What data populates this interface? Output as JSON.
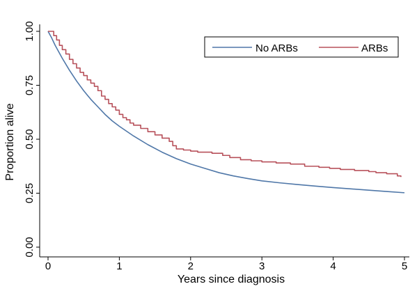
{
  "chart_data": {
    "type": "line",
    "title": "",
    "xlabel": "Years since diagnosis",
    "ylabel": "Proportion alive",
    "xlim": [
      0,
      5
    ],
    "ylim": [
      0,
      1
    ],
    "x_ticks": [
      0,
      1,
      2,
      3,
      4,
      5
    ],
    "y_ticks": [
      0.0,
      0.25,
      0.5,
      0.75,
      1.0
    ],
    "x_tick_labels": [
      "0",
      "1",
      "2",
      "3",
      "4",
      "5"
    ],
    "y_tick_labels": [
      "0.00",
      "0.25",
      "0.50",
      "0.75",
      "1.00"
    ],
    "grid": false,
    "legend_position": "top-right",
    "series": [
      {
        "name": "No ARBs",
        "color": "#4f77a8",
        "step": false,
        "points": [
          [
            0,
            1.0
          ],
          [
            0.05,
            0.97
          ],
          [
            0.1,
            0.935
          ],
          [
            0.2,
            0.875
          ],
          [
            0.3,
            0.82
          ],
          [
            0.4,
            0.77
          ],
          [
            0.5,
            0.725
          ],
          [
            0.6,
            0.685
          ],
          [
            0.7,
            0.65
          ],
          [
            0.8,
            0.615
          ],
          [
            0.9,
            0.585
          ],
          [
            1.0,
            0.56
          ],
          [
            1.2,
            0.515
          ],
          [
            1.4,
            0.475
          ],
          [
            1.6,
            0.44
          ],
          [
            1.8,
            0.41
          ],
          [
            2.0,
            0.385
          ],
          [
            2.2,
            0.365
          ],
          [
            2.4,
            0.345
          ],
          [
            2.6,
            0.33
          ],
          [
            2.8,
            0.318
          ],
          [
            3.0,
            0.307
          ],
          [
            3.25,
            0.298
          ],
          [
            3.5,
            0.29
          ],
          [
            3.75,
            0.283
          ],
          [
            4.0,
            0.276
          ],
          [
            4.25,
            0.27
          ],
          [
            4.5,
            0.264
          ],
          [
            4.75,
            0.258
          ],
          [
            5.0,
            0.252
          ]
        ]
      },
      {
        "name": "ARBs",
        "color": "#b7505a",
        "step": true,
        "points": [
          [
            0,
            1.0
          ],
          [
            0.08,
            0.98
          ],
          [
            0.12,
            0.96
          ],
          [
            0.16,
            0.935
          ],
          [
            0.2,
            0.915
          ],
          [
            0.25,
            0.895
          ],
          [
            0.3,
            0.87
          ],
          [
            0.35,
            0.85
          ],
          [
            0.4,
            0.83
          ],
          [
            0.45,
            0.81
          ],
          [
            0.5,
            0.795
          ],
          [
            0.55,
            0.775
          ],
          [
            0.6,
            0.76
          ],
          [
            0.65,
            0.745
          ],
          [
            0.7,
            0.725
          ],
          [
            0.75,
            0.7
          ],
          [
            0.8,
            0.685
          ],
          [
            0.85,
            0.665
          ],
          [
            0.9,
            0.65
          ],
          [
            0.95,
            0.635
          ],
          [
            1.0,
            0.615
          ],
          [
            1.05,
            0.6
          ],
          [
            1.1,
            0.59
          ],
          [
            1.15,
            0.575
          ],
          [
            1.2,
            0.565
          ],
          [
            1.3,
            0.55
          ],
          [
            1.4,
            0.535
          ],
          [
            1.5,
            0.52
          ],
          [
            1.6,
            0.505
          ],
          [
            1.7,
            0.49
          ],
          [
            1.75,
            0.47
          ],
          [
            1.8,
            0.455
          ],
          [
            1.9,
            0.45
          ],
          [
            2.0,
            0.445
          ],
          [
            2.1,
            0.44
          ],
          [
            2.3,
            0.435
          ],
          [
            2.45,
            0.425
          ],
          [
            2.55,
            0.415
          ],
          [
            2.7,
            0.405
          ],
          [
            2.85,
            0.4
          ],
          [
            3.0,
            0.395
          ],
          [
            3.2,
            0.39
          ],
          [
            3.4,
            0.385
          ],
          [
            3.6,
            0.375
          ],
          [
            3.8,
            0.37
          ],
          [
            3.95,
            0.365
          ],
          [
            4.1,
            0.36
          ],
          [
            4.3,
            0.355
          ],
          [
            4.5,
            0.35
          ],
          [
            4.6,
            0.345
          ],
          [
            4.75,
            0.34
          ],
          [
            4.9,
            0.33
          ],
          [
            4.95,
            0.325
          ]
        ]
      }
    ]
  }
}
